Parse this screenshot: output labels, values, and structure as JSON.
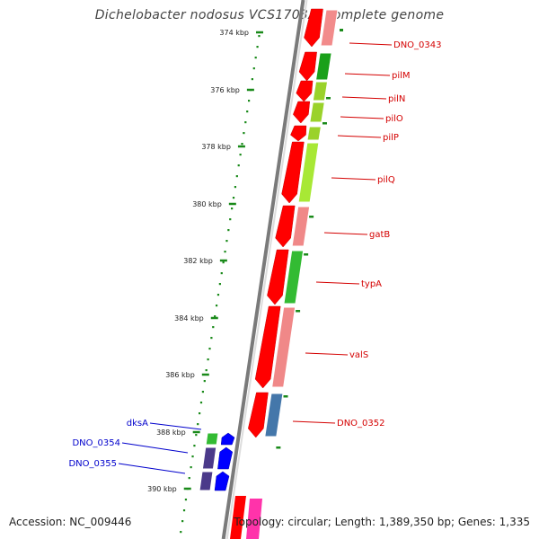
{
  "title": "Dichelobacter nodosus VCS1703A, complete genome",
  "footer": {
    "accession": "Accession: NC_009446",
    "summary": "Topology: circular; Length: 1,389,350 bp; Genes: 1,335"
  },
  "colors": {
    "backbone": "#888888",
    "tick": "#1a8a1a",
    "forward_label": "#d40000",
    "reverse_label": "#0000cc",
    "forward_arrow": "#ff0000",
    "reverse_arrow": "#0000ff"
  },
  "ticks": [
    {
      "label": "374 kbp"
    },
    {
      "label": "376 kbp"
    },
    {
      "label": "378 kbp"
    },
    {
      "label": "380 kbp"
    },
    {
      "label": "382 kbp"
    },
    {
      "label": "384 kbp"
    },
    {
      "label": "386 kbp"
    },
    {
      "label": "388 kbp"
    },
    {
      "label": "390 kbp"
    }
  ],
  "genes_forward": [
    {
      "name": "DNO_0343",
      "category_color": "#f28b8b"
    },
    {
      "name": "pilM",
      "category_color": "#1aa01a"
    },
    {
      "name": "pilN",
      "category_color": "#9ad22a"
    },
    {
      "name": "pilO",
      "category_color": "#9ad22a"
    },
    {
      "name": "pilP",
      "category_color": "#9ad22a"
    },
    {
      "name": "pilQ",
      "category_color": "#a8e835"
    },
    {
      "name": "gatB",
      "category_color": "#f08888"
    },
    {
      "name": "typA",
      "category_color": "#33bb33"
    },
    {
      "name": "valS",
      "category_color": "#f08888"
    },
    {
      "name": "DNO_0352",
      "category_color": "#4477aa"
    }
  ],
  "genes_reverse": [
    {
      "name": "dksA",
      "category_color": "#33bb33"
    },
    {
      "name": "DNO_0354",
      "category_color": "#4b3a8a"
    },
    {
      "name": "DNO_0355",
      "category_color": "#4b3a8a"
    }
  ]
}
